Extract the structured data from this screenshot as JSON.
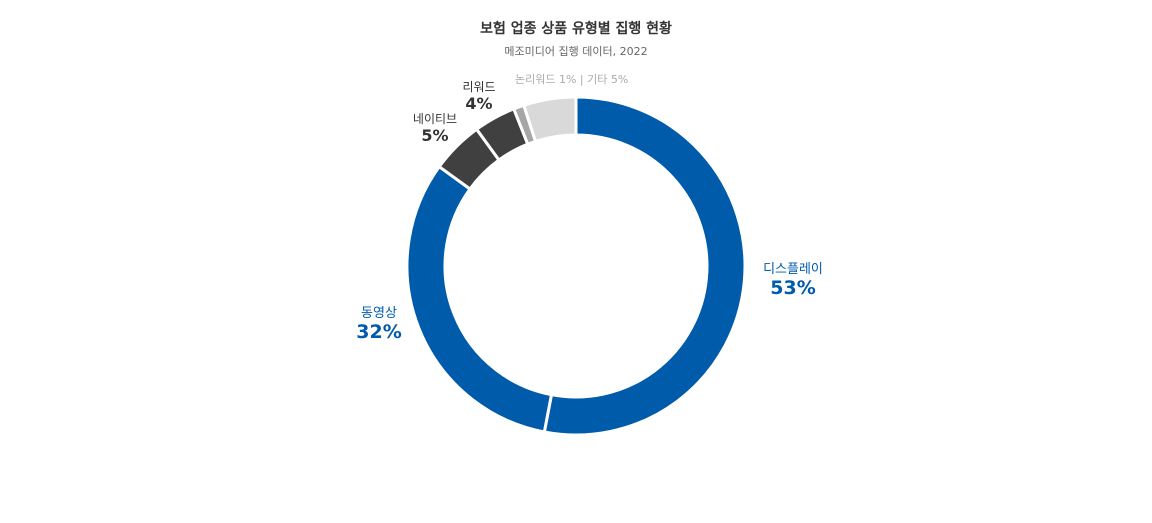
{
  "title": "보험 업종 상품 유형별 집행 현황",
  "subtitle": "메조미디어 집행 데이터, 2022",
  "chart_data": {
    "type": "pie",
    "variant": "donut",
    "title": "보험 업종 상품 유형별 집행 현황",
    "subtitle": "메조미디어 집행 데이터, 2022",
    "slices": [
      {
        "label": "디스플레이",
        "value": 53,
        "display": "53%",
        "color": "#005bab"
      },
      {
        "label": "동영상",
        "value": 32,
        "display": "32%",
        "color": "#005bab"
      },
      {
        "label": "네이티브",
        "value": 5,
        "display": "5%",
        "color": "#404040"
      },
      {
        "label": "리워드",
        "value": 4,
        "display": "4%",
        "color": "#404040"
      },
      {
        "label": "논리워드",
        "value": 1,
        "display": "1%",
        "color": "#a6a6a6"
      },
      {
        "label": "기타",
        "value": 5,
        "display": "5%",
        "color": "#d9d9d9"
      }
    ],
    "note": "논리워드 1% | 기타 5%"
  }
}
